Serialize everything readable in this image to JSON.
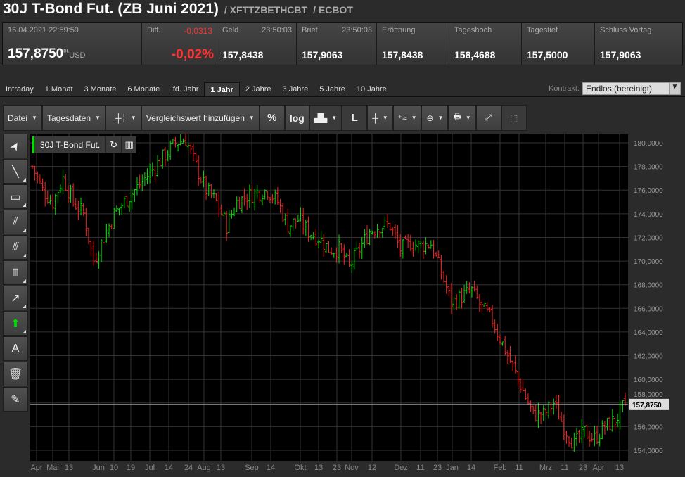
{
  "header": {
    "title": "30J T-Bond Fut. (ZB Juni 2021)",
    "symbol": "/ XFTTZBETHCBT",
    "exchange": "/ ECBOT"
  },
  "quote": {
    "datetime": "16.04.2021 22:59:59",
    "last": "157,8750",
    "last_sup": "DL",
    "currency": "USD",
    "diff_label": "Diff.",
    "diff_abs": "-0,0313",
    "diff_pct": "-0,02%",
    "cells": [
      {
        "label": "Geld",
        "time": "23:50:03",
        "value": "157,8438"
      },
      {
        "label": "Brief",
        "time": "23:50:03",
        "value": "157,9063"
      },
      {
        "label": "Eröffnung",
        "value": "157,8438"
      },
      {
        "label": "Tageshoch",
        "value": "158,4688"
      },
      {
        "label": "Tagestief",
        "value": "157,5000"
      },
      {
        "label": "Schluss Vortag",
        "value": "157,9063"
      }
    ]
  },
  "tabs": [
    "Intraday",
    "1 Monat",
    "3 Monate",
    "6 Monate",
    "lfd. Jahr",
    "1 Jahr",
    "2 Jahre",
    "3 Jahre",
    "5 Jahre",
    "10 Jahre"
  ],
  "active_tab": "1 Jahr",
  "kontrakt": {
    "label": "Kontrakt:",
    "value": "Endlos (bereinigt)"
  },
  "toolbar": {
    "datei": "Datei",
    "tagesdaten": "Tagesdaten",
    "compare": "Vergleichswert hinzufügen",
    "percent": "%",
    "log": "log",
    "line": "L"
  },
  "left_tools": [
    "cursor-icon",
    "line-icon",
    "rectangle-icon",
    "fan-icon",
    "parallel-icon",
    "fibonacci-icon",
    "arrow-line-icon",
    "up-arrow-icon",
    "text-icon",
    "trash-icon",
    "eraser-icon"
  ],
  "text_tool": "A",
  "legend": {
    "name": "30J T-Bond Fut."
  },
  "colors": {
    "up": "#00e000",
    "down": "#ff2020",
    "background": "#000000"
  },
  "chart_data": {
    "type": "ohlc",
    "closes": [
      178,
      176,
      175,
      177,
      175,
      174,
      170,
      172,
      174,
      175,
      176,
      177,
      178,
      179,
      180,
      180.3,
      178,
      176,
      175,
      173,
      175,
      175.5,
      175.8,
      176,
      175,
      173,
      173.5,
      172.5,
      172,
      171,
      171,
      169.5,
      171,
      172.5,
      173,
      173,
      171,
      171.5,
      171.3,
      171.5,
      169,
      166.5,
      167,
      167.5,
      166,
      165,
      163,
      161,
      159,
      157,
      157,
      158,
      156,
      154.5,
      155.5,
      155,
      156,
      156.5,
      157.875
    ],
    "ylim": [
      153000,
      181000
    ],
    "yticks": [
      "154,0000",
      "156,0000",
      "158,0000",
      "160,0000",
      "162,0000",
      "164,0000",
      "166,0000",
      "168,0000",
      "170,0000",
      "172,0000",
      "174,0000",
      "176,0000",
      "178,0000",
      "180,0000"
    ],
    "xticks": [
      "Apr",
      "Mai",
      "13",
      "Jun",
      "10",
      "19",
      "Jul",
      "14",
      "24",
      "Aug",
      "13",
      "Sep",
      "14",
      "Okt",
      "13",
      "23",
      "Nov",
      "12",
      "Dez",
      "11",
      "23",
      "Jan",
      "14",
      "Feb",
      "11",
      "Mrz",
      "11",
      "23",
      "Apr",
      "13"
    ],
    "last_label": "157,8750",
    "grid": true
  }
}
